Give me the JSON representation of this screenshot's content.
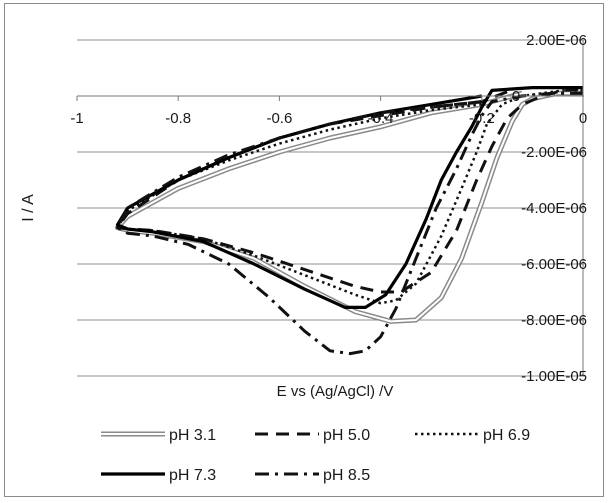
{
  "chart_data": {
    "type": "line",
    "title": "",
    "xlabel": "E vs (Ag/AgCl) /V",
    "ylabel": "I / A",
    "xlim": [
      -1,
      0
    ],
    "ylim": [
      -1e-05,
      2e-06
    ],
    "x_ticks": [
      -1,
      -0.8,
      -0.6,
      -0.4,
      -0.2,
      0
    ],
    "x_tick_labels": [
      "-1",
      "-0.8",
      "-0.6",
      "-0.4",
      "-0.2",
      "0"
    ],
    "y_ticks": [
      2e-06,
      0,
      -2e-06,
      -4e-06,
      -6e-06,
      -8e-06,
      -1e-05
    ],
    "y_tick_labels": [
      "2.00E-06",
      "0",
      "-2.00E-06",
      "-4.00E-06",
      "-6.00E-06",
      "-8.00E-06",
      "-1.00E-05"
    ],
    "grid": "horizontal major gridlines",
    "legend": "bottom",
    "series": [
      {
        "name": "pH 3.1",
        "style": "double",
        "color": "#8a8a8a",
        "x": [
          -0.12,
          -0.2,
          -0.3,
          -0.4,
          -0.5,
          -0.6,
          -0.7,
          -0.8,
          -0.9,
          -0.92,
          -0.9,
          -0.85,
          -0.75,
          -0.65,
          -0.55,
          -0.45,
          -0.38,
          -0.33,
          -0.28,
          -0.24,
          -0.2,
          -0.17,
          -0.14,
          -0.12,
          -0.1,
          -0.05,
          0
        ],
        "y": [
          1e-07,
          -3e-07,
          -6e-07,
          -1.1e-06,
          -1.5e-06,
          -2e-06,
          -2.6e-06,
          -3.3e-06,
          -4.3e-06,
          -4.7e-06,
          -4.8e-06,
          -4.9e-06,
          -5.2e-06,
          -5.8e-06,
          -6.8e-06,
          -7.7e-06,
          -8.05e-06,
          -8e-06,
          -7.2e-06,
          -5.8e-06,
          -3.8e-06,
          -2.2e-06,
          -9e-07,
          -3e-07,
          -1e-07,
          1e-07,
          1e-07
        ]
      },
      {
        "name": "pH 5.0",
        "style": "dashed",
        "color": "#111111",
        "x": [
          -0.15,
          -0.2,
          -0.3,
          -0.4,
          -0.5,
          -0.6,
          -0.7,
          -0.8,
          -0.9,
          -0.92,
          -0.9,
          -0.85,
          -0.75,
          -0.65,
          -0.55,
          -0.45,
          -0.4,
          -0.36,
          -0.3,
          -0.25,
          -0.21,
          -0.18,
          -0.15,
          -0.12,
          -0.08,
          -0.04,
          0
        ],
        "y": [
          1.5e-07,
          -2e-07,
          -4e-07,
          -7e-07,
          -1e-06,
          -1.5e-06,
          -2.2e-06,
          -3e-06,
          -4.2e-06,
          -4.7e-06,
          -4.75e-06,
          -4.8e-06,
          -5.1e-06,
          -5.6e-06,
          -6.2e-06,
          -6.8e-06,
          -7e-06,
          -7e-06,
          -6.3e-06,
          -4.8e-06,
          -3e-06,
          -1.8e-06,
          -8e-07,
          -3e-07,
          0,
          2e-07,
          2.5e-07
        ]
      },
      {
        "name": "pH 6.9",
        "style": "dotted",
        "color": "#111111",
        "x": [
          -0.2,
          -0.3,
          -0.4,
          -0.5,
          -0.6,
          -0.7,
          -0.8,
          -0.9,
          -0.92,
          -0.9,
          -0.85,
          -0.75,
          -0.65,
          -0.55,
          -0.45,
          -0.4,
          -0.37,
          -0.33,
          -0.28,
          -0.24,
          -0.21,
          -0.19,
          -0.16,
          -0.12,
          -0.08,
          -0.04,
          0
        ],
        "y": [
          -3e-07,
          -5e-07,
          -8e-07,
          -1.2e-06,
          -1.7e-06,
          -2.3e-06,
          -3e-06,
          -4.1e-06,
          -4.7e-06,
          -4.75e-06,
          -4.8e-06,
          -5.1e-06,
          -5.7e-06,
          -6.4e-06,
          -7.1e-06,
          -7.4e-06,
          -7.3e-06,
          -6.7e-06,
          -5e-06,
          -3.3e-06,
          -2e-06,
          -1e-06,
          -3e-07,
          0,
          1e-07,
          2e-07,
          2e-07
        ]
      },
      {
        "name": "pH 7.3",
        "style": "solid",
        "color": "#000000",
        "x": [
          -0.2,
          -0.3,
          -0.4,
          -0.5,
          -0.6,
          -0.7,
          -0.8,
          -0.9,
          -0.92,
          -0.9,
          -0.85,
          -0.75,
          -0.65,
          -0.55,
          -0.47,
          -0.43,
          -0.39,
          -0.35,
          -0.31,
          -0.28,
          -0.25,
          -0.22,
          -0.2,
          -0.18,
          -0.1,
          -0.05,
          0
        ],
        "y": [
          0,
          -3e-07,
          -6e-07,
          -1e-06,
          -1.5e-06,
          -2.2e-06,
          -3e-06,
          -4e-06,
          -4.6e-06,
          -4.75e-06,
          -4.85e-06,
          -5.2e-06,
          -6e-06,
          -6.9e-06,
          -7.55e-06,
          -7.55e-06,
          -7.1e-06,
          -6e-06,
          -4.4e-06,
          -3e-06,
          -2e-06,
          -1.1e-06,
          -4e-07,
          2e-07,
          3e-07,
          3e-07,
          3e-07
        ]
      },
      {
        "name": "pH 8.5",
        "style": "dashdot",
        "color": "#111111",
        "x": [
          -0.2,
          -0.3,
          -0.4,
          -0.5,
          -0.6,
          -0.7,
          -0.8,
          -0.9,
          -0.92,
          -0.9,
          -0.85,
          -0.78,
          -0.7,
          -0.62,
          -0.55,
          -0.5,
          -0.46,
          -0.43,
          -0.4,
          -0.37,
          -0.33,
          -0.29,
          -0.25,
          -0.22,
          -0.2,
          -0.18,
          -0.12,
          -0.06,
          0
        ],
        "y": [
          -2e-07,
          -4e-07,
          -6e-07,
          -1e-06,
          -1.5e-06,
          -2.1e-06,
          -2.9e-06,
          -4e-06,
          -4.7e-06,
          -4.9e-06,
          -5e-06,
          -5.3e-06,
          -6e-06,
          -7.2e-06,
          -8.4e-06,
          -9.1e-06,
          -9.2e-06,
          -9.1e-06,
          -8.6e-06,
          -7.6e-06,
          -5.8e-06,
          -4e-06,
          -2.6e-06,
          -1.4e-06,
          -7e-07,
          -2e-07,
          0,
          1e-07,
          1e-07
        ]
      }
    ]
  }
}
